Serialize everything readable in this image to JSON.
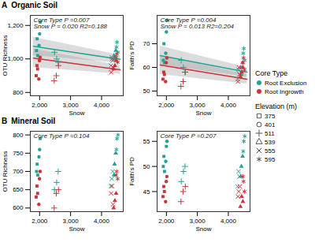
{
  "panels": [
    {
      "label": "A",
      "title": "Organic Soil"
    },
    {
      "label": "B",
      "title": "Mineral Soil"
    }
  ],
  "legends": [
    {
      "title": "Core Type"
    },
    {
      "title": "Elevation (m)",
      "values": [
        375,
        401,
        511,
        539,
        555,
        595
      ],
      "markers": [
        "square",
        "circle",
        "plus",
        "triangle",
        "times",
        "asterisk"
      ]
    }
  ],
  "chart_data": [
    {
      "type": "scatter",
      "xlabel": "Snow",
      "ylabel": "OTU Richness",
      "xlim": [
        1700,
        4700
      ],
      "xticks": [
        2000,
        3000,
        4000
      ],
      "ylim": [
        780,
        1260
      ],
      "yticks": [
        800,
        1000,
        1200
      ],
      "annotations": [
        "Core Type P =0.007",
        "Snow P = 0.020 R2=0.188"
      ],
      "series": [
        {
          "name": "Root Exclusion",
          "color": "#23a397",
          "x": [
            1900,
            1920,
            1940,
            1980,
            2000,
            2020,
            2480,
            2550,
            2600,
            4400,
            4420,
            4460,
            4300,
            4330,
            4360,
            4480,
            4500,
            4530
          ],
          "elevation": [
            375,
            375,
            375,
            401,
            401,
            401,
            511,
            511,
            511,
            539,
            539,
            539,
            555,
            555,
            555,
            595,
            595,
            595
          ],
          "values": [
            1050,
            1120,
            1020,
            1080,
            1150,
            1220,
            1040,
            1000,
            980,
            1020,
            1000,
            1050,
            960,
            1010,
            990,
            1070,
            1100,
            1040
          ],
          "fit": {
            "x": [
              1800,
              4600
            ],
            "values": [
              1075,
              998
            ],
            "lower": [
              1020,
              975
            ],
            "upper": [
              1130,
              1022
            ]
          }
        },
        {
          "name": "Root Ingrowth",
          "color": "#c8353a",
          "x": [
            1890,
            1915,
            1935,
            1975,
            1995,
            2015,
            2470,
            2540,
            2610,
            4390,
            4430,
            4470,
            4310,
            4340,
            4370,
            4470,
            4490,
            4520
          ],
          "elevation": [
            375,
            375,
            375,
            401,
            401,
            401,
            511,
            511,
            511,
            539,
            539,
            539,
            555,
            555,
            555,
            595,
            595,
            595
          ],
          "values": [
            900,
            960,
            940,
            880,
            990,
            1010,
            870,
            900,
            960,
            940,
            960,
            990,
            920,
            1000,
            950,
            1010,
            1030,
            980
          ],
          "fit": {
            "x": [
              1800,
              4600
            ],
            "values": [
              1005,
              935
            ],
            "lower": [
              950,
              910
            ],
            "upper": [
              1060,
              960
            ]
          }
        }
      ]
    },
    {
      "type": "scatter",
      "xlabel": "Snow",
      "ylabel": "Faith's PD",
      "xlim": [
        1700,
        4700
      ],
      "xticks": [
        2000,
        3000,
        4000
      ],
      "ylim": [
        48,
        82
      ],
      "yticks": [
        50,
        60,
        70
      ],
      "annotations": [
        "Core Type P =0.004",
        "Snow P = 0.013 R2=0.204"
      ],
      "series": [
        {
          "name": "Root Exclusion",
          "color": "#23a397",
          "x": [
            1900,
            1920,
            1940,
            1980,
            2000,
            2020,
            2480,
            2550,
            2600,
            4400,
            4420,
            4460,
            4300,
            4330,
            4360,
            4480,
            4500,
            4530
          ],
          "elevation": [
            375,
            375,
            375,
            401,
            401,
            401,
            511,
            511,
            511,
            539,
            539,
            539,
            555,
            555,
            555,
            595,
            595,
            595
          ],
          "values": [
            63,
            70,
            62,
            66,
            75,
            80,
            63,
            60,
            58,
            60,
            57,
            62,
            55,
            59,
            57,
            66,
            68,
            63
          ],
          "fit": {
            "x": [
              1800,
              4600
            ],
            "values": [
              65,
              58
            ],
            "lower": [
              61,
              56
            ],
            "upper": [
              69,
              60
            ]
          }
        },
        {
          "name": "Root Ingrowth",
          "color": "#c8353a",
          "x": [
            1890,
            1915,
            1935,
            1975,
            1995,
            2015,
            2470,
            2540,
            2610,
            4390,
            4430,
            4470,
            4310,
            4340,
            4370,
            4470,
            4490,
            4520
          ],
          "elevation": [
            375,
            375,
            375,
            401,
            401,
            401,
            511,
            511,
            511,
            539,
            539,
            539,
            555,
            555,
            555,
            595,
            595,
            595
          ],
          "values": [
            55,
            58,
            57,
            54,
            62,
            64,
            52,
            54,
            58,
            56,
            58,
            60,
            54,
            60,
            57,
            62,
            64,
            59
          ],
          "fit": {
            "x": [
              1800,
              4600
            ],
            "values": [
              61,
              55
            ],
            "lower": [
              57,
              53
            ],
            "upper": [
              65,
              57
            ]
          }
        }
      ]
    },
    {
      "type": "scatter",
      "xlabel": "Snow",
      "ylabel": "OTU Richness",
      "xlim": [
        1700,
        4700
      ],
      "xticks": [
        2000,
        3000,
        4000
      ],
      "ylim": [
        590,
        810
      ],
      "yticks": [
        600,
        650,
        700,
        750,
        800
      ],
      "annotations": [
        "Core Type P =0.104"
      ],
      "series": [
        {
          "name": "Root Exclusion",
          "color": "#23a397",
          "x": [
            1900,
            1920,
            1940,
            1980,
            2000,
            2020,
            2480,
            2550,
            2600,
            4400,
            4420,
            4460,
            4300,
            4330,
            4360,
            4480,
            4500,
            4530
          ],
          "elevation": [
            375,
            375,
            375,
            401,
            401,
            401,
            511,
            511,
            511,
            539,
            539,
            539,
            555,
            555,
            555,
            595,
            595,
            595
          ],
          "values": [
            700,
            720,
            690,
            740,
            760,
            790,
            650,
            670,
            700,
            690,
            720,
            750,
            660,
            680,
            700,
            760,
            790,
            800
          ]
        },
        {
          "name": "Root Ingrowth",
          "color": "#c8353a",
          "x": [
            1890,
            1915,
            1935,
            1975,
            1995,
            2015,
            2470,
            2540,
            2610,
            4390,
            4430,
            4470,
            4310,
            4340,
            4370,
            4470,
            4490,
            4520
          ],
          "elevation": [
            375,
            375,
            375,
            401,
            401,
            401,
            511,
            511,
            511,
            539,
            539,
            539,
            555,
            555,
            555,
            595,
            595,
            595
          ],
          "values": [
            630,
            660,
            640,
            610,
            680,
            700,
            600,
            640,
            650,
            600,
            620,
            640,
            640,
            660,
            610,
            690,
            700,
            680
          ]
        }
      ]
    },
    {
      "type": "scatter",
      "xlabel": "Snow",
      "ylabel": "Faith's PD",
      "xlim": [
        1700,
        4700
      ],
      "xticks": [
        2000,
        3000,
        4000
      ],
      "ylim": [
        41,
        57
      ],
      "yticks": [
        45,
        50,
        55
      ],
      "annotations": [
        "Core Type P =0.207"
      ],
      "series": [
        {
          "name": "Root Exclusion",
          "color": "#23a397",
          "x": [
            1900,
            1920,
            1940,
            1980,
            2000,
            2020,
            2480,
            2550,
            2600,
            4400,
            4420,
            4460,
            4300,
            4330,
            4360,
            4480,
            4500,
            4530
          ],
          "elevation": [
            375,
            375,
            375,
            401,
            401,
            401,
            511,
            511,
            511,
            539,
            539,
            539,
            555,
            555,
            555,
            595,
            595,
            595
          ],
          "values": [
            50,
            52,
            49,
            51,
            54,
            55,
            47,
            49,
            50,
            48,
            50,
            52,
            46,
            49,
            48,
            53,
            55,
            56
          ]
        },
        {
          "name": "Root Ingrowth",
          "color": "#c8353a",
          "x": [
            1890,
            1915,
            1935,
            1975,
            1995,
            2015,
            2470,
            2540,
            2610,
            4390,
            4430,
            4470,
            4310,
            4340,
            4370,
            4470,
            4490,
            4520
          ],
          "elevation": [
            375,
            375,
            375,
            401,
            401,
            401,
            511,
            511,
            511,
            539,
            539,
            539,
            555,
            555,
            555,
            595,
            595,
            595
          ],
          "values": [
            44,
            46,
            45,
            43,
            47,
            48,
            43,
            45,
            46,
            42,
            44,
            43,
            44,
            45,
            46,
            48,
            47,
            45
          ]
        }
      ]
    }
  ]
}
